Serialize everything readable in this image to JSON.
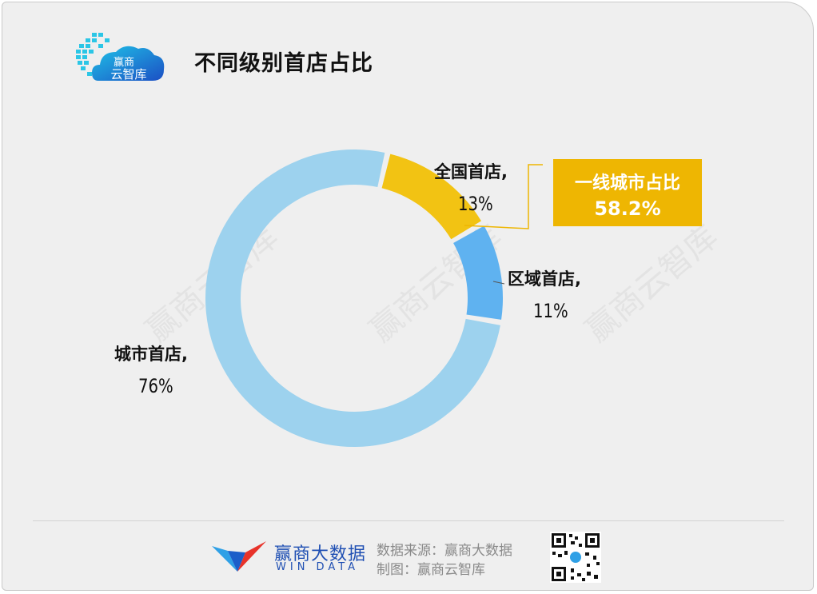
{
  "header": {
    "logo_text": "赢商\n云智库",
    "title": "不同级别首店占比"
  },
  "chart_data": {
    "type": "pie",
    "donut": true,
    "title": "不同级别首店占比",
    "slices": [
      {
        "label": "全国首店,",
        "value": 13,
        "display": "13%",
        "color": "#f2c313"
      },
      {
        "label": "区域首店,",
        "value": 11,
        "display": "11%",
        "color": "#5fb2f0"
      },
      {
        "label": "城市首店,",
        "value": 76,
        "display": "76%",
        "color": "#9dd2ee"
      }
    ],
    "callout": {
      "line1": "一线城市占比",
      "line2": "58.2%",
      "color": "#eeb602"
    }
  },
  "watermark": "赢商云智库",
  "footer": {
    "brand_cn": "赢商大数据",
    "brand_en": "WIN DATA",
    "source_line": "数据来源：赢商大数据",
    "made_by_line": "制图：赢商云智库"
  }
}
